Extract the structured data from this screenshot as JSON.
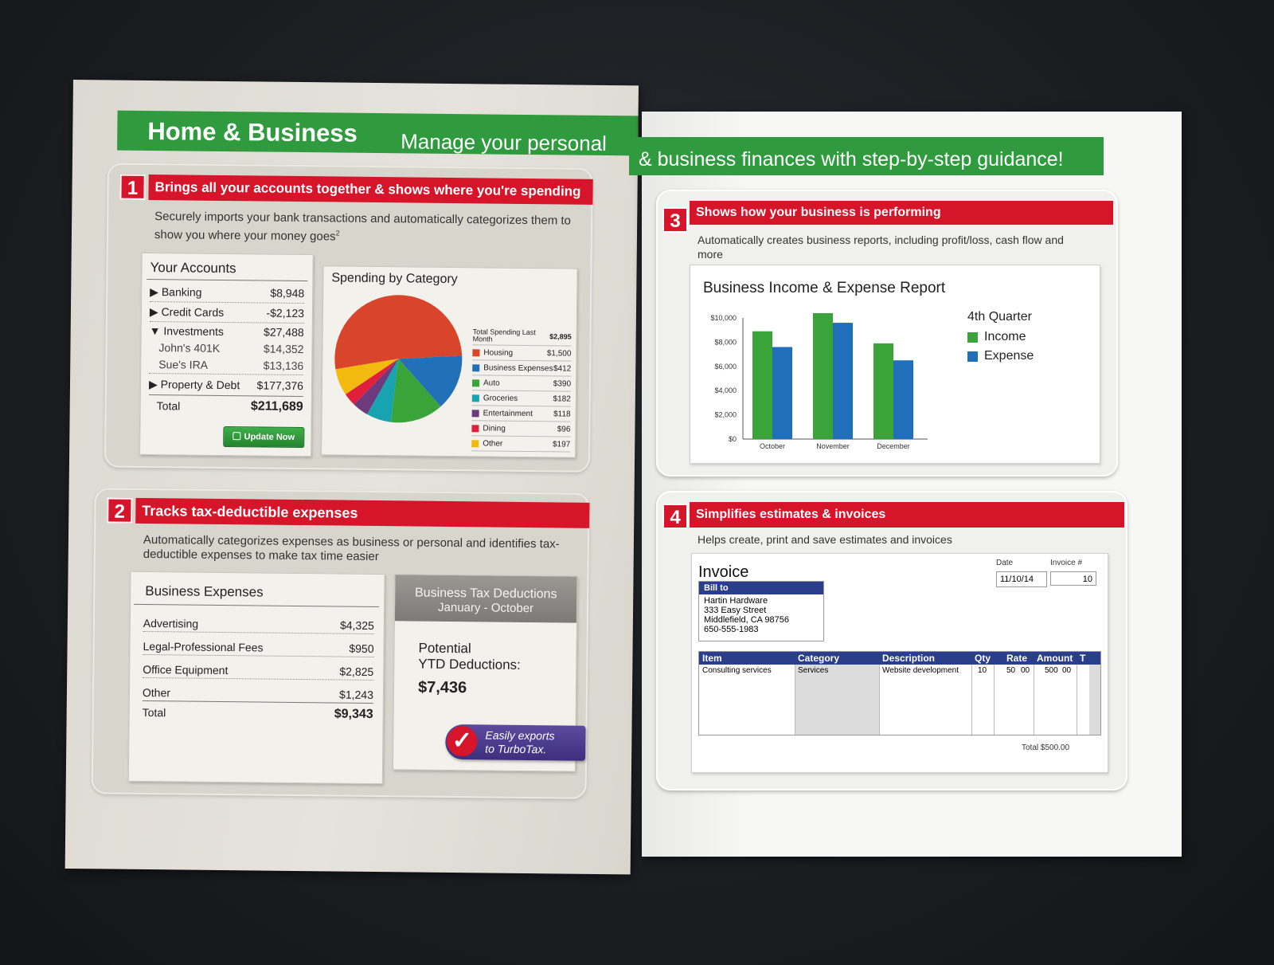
{
  "brochure": {
    "header_left": "Home & Business",
    "header_left_tagline": "Manage your personal",
    "header_right_tagline": "& business finances with step-by-step guidance!"
  },
  "section1": {
    "number": "1",
    "title": "Brings all your accounts together & shows where you're spending",
    "description": "Securely imports your bank transactions and automatically categorizes them to show you where your money goes",
    "footnote": "2",
    "accounts": {
      "title": "Your Accounts",
      "rows": [
        {
          "label": "▶ Banking",
          "value": "$8,948"
        },
        {
          "label": "▶ Credit Cards",
          "value": "-$2,123"
        },
        {
          "label": "▼ Investments",
          "value": "$27,488"
        },
        {
          "label": "John's 401K",
          "value": "$14,352"
        },
        {
          "label": "Sue's IRA",
          "value": "$13,136"
        },
        {
          "label": "▶ Property & Debt",
          "value": "$177,376"
        }
      ],
      "total_label": "Total",
      "total_value": "$211,689",
      "update_button": "Update Now"
    },
    "spending": {
      "title": "Spending by Category",
      "total_label": "Total Spending Last Month",
      "total_value": "$2,895",
      "categories": [
        {
          "name": "Housing",
          "value": "$1,500",
          "amount": 1500,
          "color": "#d9452b"
        },
        {
          "name": "Business Expenses",
          "value": "$412",
          "amount": 412,
          "color": "#2170b8"
        },
        {
          "name": "Auto",
          "value": "$390",
          "amount": 390,
          "color": "#3aa33a"
        },
        {
          "name": "Groceries",
          "value": "$182",
          "amount": 182,
          "color": "#17a3b0"
        },
        {
          "name": "Entertainment",
          "value": "$118",
          "amount": 118,
          "color": "#6d3a7d"
        },
        {
          "name": "Dining",
          "value": "$96",
          "amount": 96,
          "color": "#e01f3d"
        },
        {
          "name": "Other",
          "value": "$197",
          "amount": 197,
          "color": "#f2b90f"
        }
      ]
    }
  },
  "section2": {
    "number": "2",
    "title": "Tracks tax-deductible expenses",
    "description": "Automatically categorizes expenses as business or personal and identifies tax-deductible expenses to make tax time easier",
    "expenses": {
      "title": "Business Expenses",
      "rows": [
        {
          "label": "Advertising",
          "value": "$4,325"
        },
        {
          "label": "Legal-Professional Fees",
          "value": "$950"
        },
        {
          "label": "Office Equipment",
          "value": "$2,825"
        },
        {
          "label": "Other",
          "value": "$1,243"
        }
      ],
      "total_label": "Total",
      "total_value": "$9,343"
    },
    "deductions": {
      "title": "Business Tax Deductions",
      "subtitle": "January - October",
      "potential_line1": "Potential",
      "potential_line2": "YTD Deductions:",
      "amount": "$7,436",
      "export_line1": "Easily exports",
      "export_line2": "to TurboTax."
    }
  },
  "section3": {
    "number": "3",
    "title": "Shows how your business is performing",
    "description": "Automatically creates business reports, including profit/loss, cash flow and more",
    "report_title": "Business Income & Expense Report"
  },
  "chart_data": {
    "type": "bar",
    "title": "Business Income & Expense Report",
    "categories": [
      "October",
      "November",
      "December"
    ],
    "series": [
      {
        "name": "Income",
        "values": [
          8900,
          10400,
          7900
        ],
        "color": "#3aa33a"
      },
      {
        "name": "Expense",
        "values": [
          7600,
          9600,
          6500
        ],
        "color": "#1f6fba"
      }
    ],
    "legend_title": "4th Quarter",
    "legend_position": "right",
    "ylim": [
      0,
      10000
    ],
    "yticks": [
      "$10,000",
      "$8,000",
      "$6,000",
      "$4,000",
      "$2,000",
      "$0"
    ],
    "ytick_values": [
      10000,
      8000,
      6000,
      4000,
      2000,
      0
    ],
    "grid": false
  },
  "section4": {
    "number": "4",
    "title": "Simplifies estimates & invoices",
    "description": "Helps create, print and save estimates and invoices",
    "invoice": {
      "title": "Invoice",
      "date_label": "Date",
      "date_value": "11/10/14",
      "number_label": "Invoice #",
      "number_value": "10",
      "bill_to_label": "Bill to",
      "bill_to": [
        "Hartin Hardware",
        "333 Easy Street",
        "Middlefield, CA 98756",
        "650-555-1983"
      ],
      "columns": [
        "Item",
        "Category",
        "Description",
        "Qty",
        "Rate",
        "Amount",
        "T"
      ],
      "line": {
        "item": "Consulting services",
        "category": "Services",
        "description": "Website development",
        "qty": "10",
        "rate": "50",
        "rate_cents": "00",
        "amount": "500",
        "amount_cents": "00"
      },
      "total_label": "Total",
      "total_value": "$500.00"
    }
  }
}
